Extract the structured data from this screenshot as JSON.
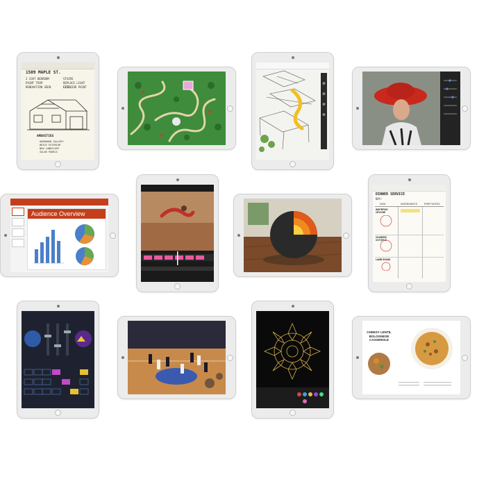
{
  "notes_app": {
    "lines": [
      "1509 MAPLE ST.",
      "2 COAT BEDROOM",
      "PAINT TRIM",
      "RENOVATION SEEN",
      "STAIRS",
      "REPLACE LIGHT FIXT.",
      "EXTERIOR PAINT"
    ],
    "list_title": "AMENITIES",
    "list_items": [
      "HARDWOOD GALLERY",
      "BRICK EXTERIOR",
      "NEW LANDSCAPE",
      "SOLAR PANELS"
    ]
  },
  "presentation_app": {
    "title": "Audience Overview"
  },
  "planner_app": {
    "title": "DINNER SERVICE",
    "subtitle": "DAY:",
    "columns": [
      "DISH",
      "INGREDIENTS",
      "PREP NOTES"
    ],
    "dishes": [
      "WHITEFISH CEVICHE",
      "CHARRED OCTOPUS",
      "LAMB SHANK"
    ]
  },
  "recipe_app": {
    "title": "CHEESY LENTIL BOLOGNESE CASSEROLE"
  },
  "colors": {
    "ppt_accent": "#c43e1c",
    "game_green": "#3d8a3a",
    "mandala_gold": "#d8b24a",
    "hat_red": "#c9281c",
    "earth_core": "#f0a020"
  }
}
